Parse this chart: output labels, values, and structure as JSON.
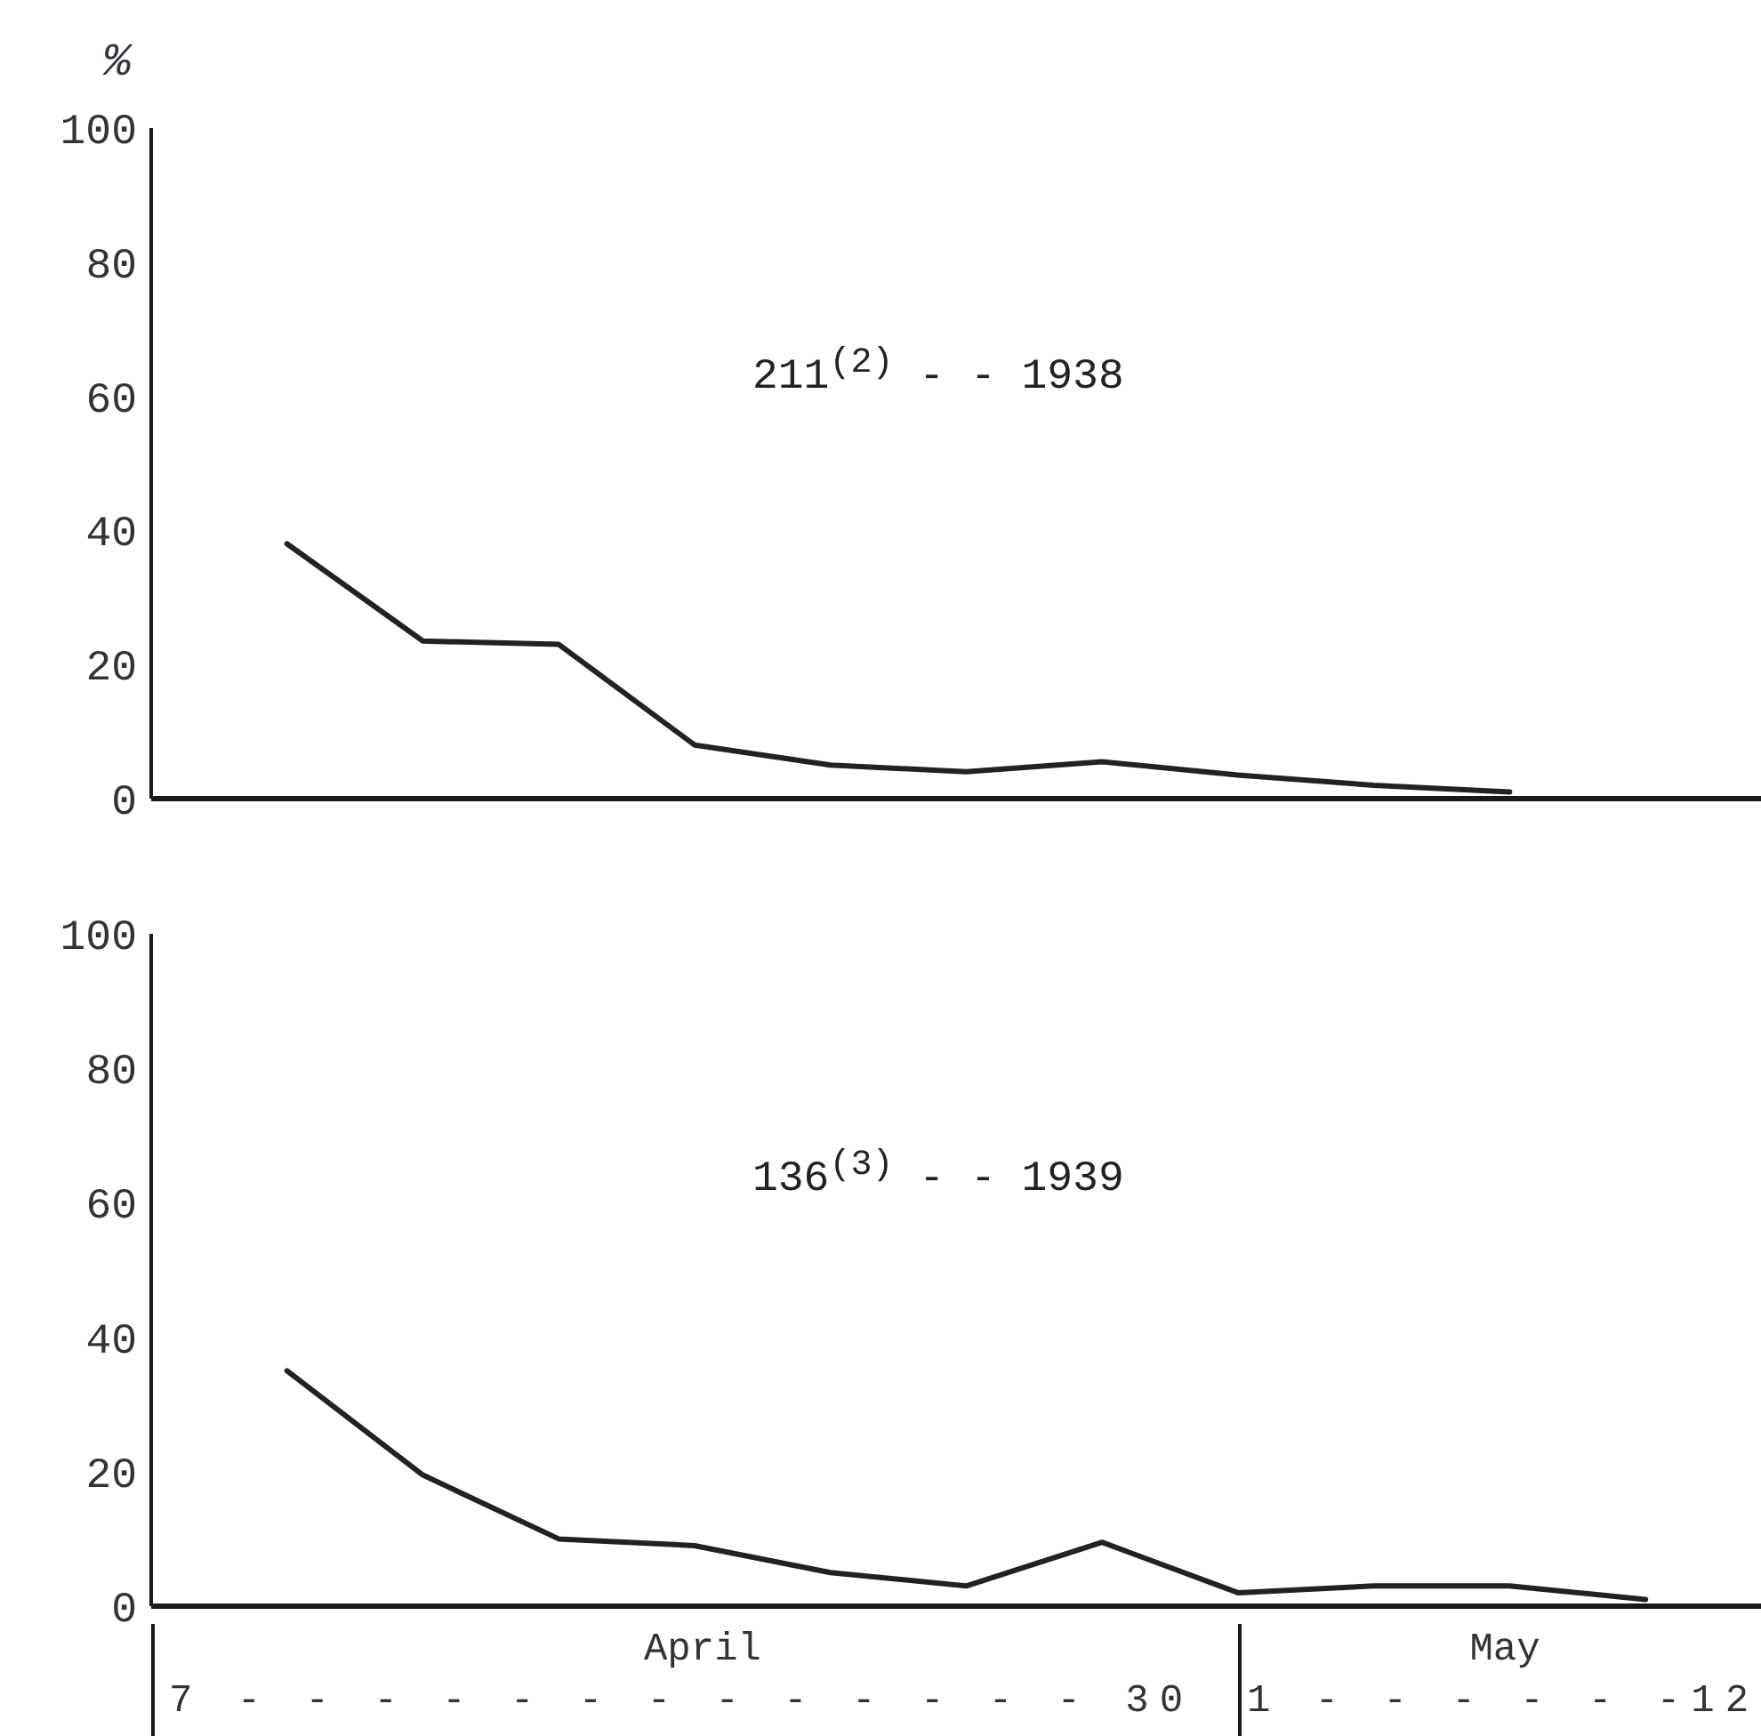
{
  "chart_data": [
    {
      "type": "line",
      "title": "211$^{(2)}$ - - 1938",
      "ylabel": "%",
      "categories": [
        null,
        null,
        null,
        null,
        null,
        null,
        null,
        null,
        null,
        null,
        null
      ],
      "series": [
        {
          "color": "#222222",
          "values": [
            38,
            23.5,
            23,
            8,
            5,
            4,
            5.5,
            3.5,
            2,
            1,
            null
          ]
        }
      ],
      "ylim": [
        0,
        100
      ],
      "yticks": [
        0,
        20,
        40,
        60,
        80,
        100
      ],
      "tick_labels": "y",
      "marker": "none",
      "line_style": "solid"
    },
    {
      "type": "line",
      "title": "136$^{(3)}$ - - 1939",
      "categories": [
        null,
        null,
        null,
        null,
        null,
        null,
        null,
        null,
        null,
        null,
        null
      ],
      "series": [
        {
          "color": "#222222",
          "values": [
            35,
            19.5,
            10,
            9,
            5,
            3,
            9.5,
            2,
            3,
            3,
            1
          ]
        }
      ],
      "ylim": [
        0,
        100
      ],
      "yticks": [
        0,
        20,
        40,
        60,
        80,
        100
      ],
      "tick_labels": "y",
      "marker": "none",
      "line_style": "solid",
      "annotations": [
        "April",
        "7 - - - - - - - - - - - - - 30",
        "May",
        "1 - - - - - -12"
      ]
    }
  ]
}
